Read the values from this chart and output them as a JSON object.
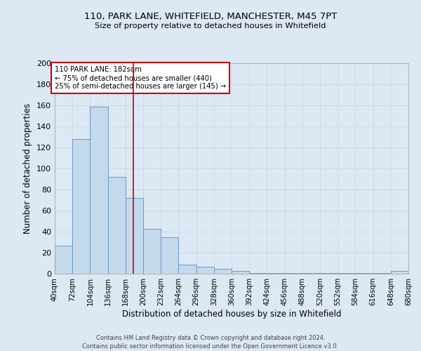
{
  "title": "110, PARK LANE, WHITEFIELD, MANCHESTER, M45 7PT",
  "subtitle": "Size of property relative to detached houses in Whitefield",
  "xlabel": "Distribution of detached houses by size in Whitefield",
  "ylabel": "Number of detached properties",
  "bin_edges": [
    40,
    72,
    104,
    136,
    168,
    200,
    232,
    264,
    296,
    328,
    360,
    392,
    424,
    456,
    488,
    520,
    552,
    584,
    616,
    648,
    680
  ],
  "bar_heights": [
    27,
    128,
    159,
    92,
    72,
    43,
    35,
    9,
    7,
    5,
    3,
    1,
    1,
    1,
    1,
    1,
    1,
    1,
    1,
    3
  ],
  "bar_color": "#c5d9ed",
  "bar_edge_color": "#6699cc",
  "property_size": 182,
  "red_line_color": "#cc0000",
  "annotation_text": "110 PARK LANE: 182sqm\n← 75% of detached houses are smaller (440)\n25% of semi-detached houses are larger (145) →",
  "annotation_box_color": "#ffffff",
  "annotation_box_edge_color": "#cc0000",
  "ylim": [
    0,
    200
  ],
  "yticks": [
    0,
    20,
    40,
    60,
    80,
    100,
    120,
    140,
    160,
    180,
    200
  ],
  "background_color": "#dce8f4",
  "grid_color": "#c8d8e8",
  "footer_line1": "Contains HM Land Registry data © Crown copyright and database right 2024.",
  "footer_line2": "Contains public sector information licensed under the Open Government Licence v3.0."
}
